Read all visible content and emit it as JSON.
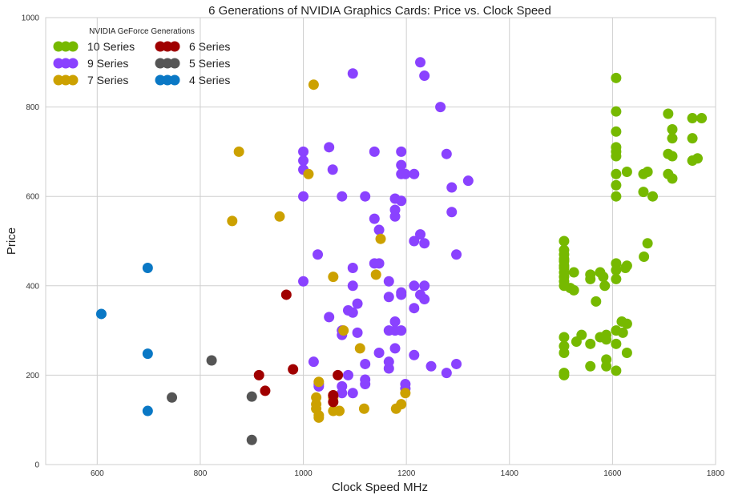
{
  "chart_data": {
    "type": "scatter",
    "title": "6 Generations of NVIDIA Graphics Cards: Price vs. Clock Speed",
    "xlabel": "Clock Speed MHz",
    "ylabel": "Price",
    "xlim": [
      500,
      1800
    ],
    "ylim": [
      0,
      1000
    ],
    "xticks": [
      "600",
      "800",
      "1000",
      "1200",
      "1400",
      "1600",
      "1800"
    ],
    "yticks": [
      "0",
      "200",
      "400",
      "600",
      "800",
      "1000"
    ],
    "grid": true,
    "legend": {
      "title": "NVIDIA GeForce Generations",
      "placement": "top-left",
      "columns": 2
    },
    "series": [
      {
        "name": "10 Series",
        "color": "#76b900",
        "points": [
          [
            1506,
            500
          ],
          [
            1506,
            480
          ],
          [
            1506,
            470
          ],
          [
            1506,
            460
          ],
          [
            1506,
            455
          ],
          [
            1506,
            445
          ],
          [
            1506,
            440
          ],
          [
            1506,
            430
          ],
          [
            1506,
            420
          ],
          [
            1506,
            410
          ],
          [
            1506,
            400
          ],
          [
            1506,
            285
          ],
          [
            1506,
            265
          ],
          [
            1506,
            250
          ],
          [
            1506,
            205
          ],
          [
            1506,
            200
          ],
          [
            1518,
            395
          ],
          [
            1525,
            390
          ],
          [
            1525,
            430
          ],
          [
            1530,
            275
          ],
          [
            1540,
            290
          ],
          [
            1557,
            425
          ],
          [
            1557,
            415
          ],
          [
            1557,
            270
          ],
          [
            1557,
            220
          ],
          [
            1568,
            365
          ],
          [
            1576,
            430
          ],
          [
            1576,
            285
          ],
          [
            1582,
            420
          ],
          [
            1585,
            400
          ],
          [
            1588,
            290
          ],
          [
            1588,
            280
          ],
          [
            1588,
            235
          ],
          [
            1588,
            220
          ],
          [
            1607,
            865
          ],
          [
            1607,
            790
          ],
          [
            1607,
            745
          ],
          [
            1607,
            710
          ],
          [
            1607,
            700
          ],
          [
            1607,
            690
          ],
          [
            1607,
            650
          ],
          [
            1607,
            625
          ],
          [
            1607,
            600
          ],
          [
            1607,
            450
          ],
          [
            1607,
            435
          ],
          [
            1607,
            415
          ],
          [
            1607,
            300
          ],
          [
            1607,
            270
          ],
          [
            1607,
            210
          ],
          [
            1618,
            320
          ],
          [
            1620,
            295
          ],
          [
            1625,
            440
          ],
          [
            1628,
            445
          ],
          [
            1628,
            315
          ],
          [
            1628,
            655
          ],
          [
            1628,
            250
          ],
          [
            1660,
            650
          ],
          [
            1660,
            610
          ],
          [
            1661,
            465
          ],
          [
            1668,
            495
          ],
          [
            1668,
            655
          ],
          [
            1678,
            600
          ],
          [
            1708,
            785
          ],
          [
            1708,
            695
          ],
          [
            1708,
            650
          ],
          [
            1716,
            750
          ],
          [
            1716,
            730
          ],
          [
            1716,
            690
          ],
          [
            1716,
            640
          ],
          [
            1755,
            775
          ],
          [
            1755,
            730
          ],
          [
            1755,
            680
          ],
          [
            1765,
            685
          ],
          [
            1773,
            775
          ]
        ]
      },
      {
        "name": "9 Series",
        "color": "#8a42ff",
        "points": [
          [
            1000,
            700
          ],
          [
            1000,
            680
          ],
          [
            1000,
            660
          ],
          [
            1000,
            600
          ],
          [
            1000,
            410
          ],
          [
            1020,
            230
          ],
          [
            1028,
            470
          ],
          [
            1030,
            175
          ],
          [
            1030,
            180
          ],
          [
            1050,
            710
          ],
          [
            1050,
            330
          ],
          [
            1057,
            660
          ],
          [
            1075,
            600
          ],
          [
            1075,
            300
          ],
          [
            1075,
            290
          ],
          [
            1075,
            175
          ],
          [
            1075,
            160
          ],
          [
            1087,
            345
          ],
          [
            1087,
            200
          ],
          [
            1096,
            875
          ],
          [
            1096,
            400
          ],
          [
            1096,
            440
          ],
          [
            1096,
            340
          ],
          [
            1096,
            160
          ],
          [
            1105,
            360
          ],
          [
            1105,
            295
          ],
          [
            1120,
            600
          ],
          [
            1120,
            225
          ],
          [
            1120,
            190
          ],
          [
            1120,
            180
          ],
          [
            1138,
            700
          ],
          [
            1138,
            550
          ],
          [
            1138,
            450
          ],
          [
            1147,
            525
          ],
          [
            1147,
            450
          ],
          [
            1147,
            250
          ],
          [
            1166,
            410
          ],
          [
            1166,
            375
          ],
          [
            1166,
            300
          ],
          [
            1166,
            230
          ],
          [
            1166,
            215
          ],
          [
            1178,
            595
          ],
          [
            1178,
            570
          ],
          [
            1178,
            555
          ],
          [
            1178,
            320
          ],
          [
            1178,
            300
          ],
          [
            1178,
            260
          ],
          [
            1190,
            700
          ],
          [
            1190,
            670
          ],
          [
            1190,
            650
          ],
          [
            1190,
            590
          ],
          [
            1190,
            385
          ],
          [
            1190,
            380
          ],
          [
            1190,
            300
          ],
          [
            1198,
            650
          ],
          [
            1198,
            180
          ],
          [
            1198,
            170
          ],
          [
            1215,
            650
          ],
          [
            1215,
            500
          ],
          [
            1215,
            400
          ],
          [
            1215,
            350
          ],
          [
            1215,
            245
          ],
          [
            1227,
            900
          ],
          [
            1227,
            515
          ],
          [
            1227,
            380
          ],
          [
            1235,
            870
          ],
          [
            1235,
            495
          ],
          [
            1235,
            400
          ],
          [
            1235,
            370
          ],
          [
            1248,
            220
          ],
          [
            1266,
            800
          ],
          [
            1278,
            695
          ],
          [
            1278,
            205
          ],
          [
            1288,
            620
          ],
          [
            1288,
            565
          ],
          [
            1297,
            470
          ],
          [
            1297,
            225
          ],
          [
            1320,
            635
          ]
        ]
      },
      {
        "name": "7 Series",
        "color": "#cca100",
        "points": [
          [
            862,
            545
          ],
          [
            875,
            700
          ],
          [
            954,
            555
          ],
          [
            1010,
            650
          ],
          [
            1020,
            850
          ],
          [
            1025,
            150
          ],
          [
            1025,
            135
          ],
          [
            1025,
            125
          ],
          [
            1030,
            185
          ],
          [
            1030,
            110
          ],
          [
            1030,
            105
          ],
          [
            1058,
            420
          ],
          [
            1058,
            155
          ],
          [
            1058,
            150
          ],
          [
            1058,
            120
          ],
          [
            1070,
            120
          ],
          [
            1078,
            300
          ],
          [
            1110,
            260
          ],
          [
            1118,
            125
          ],
          [
            1141,
            425
          ],
          [
            1150,
            505
          ],
          [
            1180,
            125
          ],
          [
            1190,
            135
          ],
          [
            1198,
            160
          ]
        ]
      },
      {
        "name": "6 Series",
        "color": "#a00000",
        "points": [
          [
            914,
            200
          ],
          [
            926,
            165
          ],
          [
            967,
            380
          ],
          [
            980,
            213
          ],
          [
            1058,
            155
          ],
          [
            1058,
            140
          ],
          [
            1067,
            200
          ]
        ]
      },
      {
        "name": "5 Series",
        "color": "#555555",
        "points": [
          [
            745,
            150
          ],
          [
            822,
            233
          ],
          [
            900,
            152
          ],
          [
            900,
            55
          ]
        ]
      },
      {
        "name": "4 Series",
        "color": "#0a78c5",
        "points": [
          [
            608,
            337
          ],
          [
            698,
            440
          ],
          [
            698,
            248
          ],
          [
            698,
            120
          ]
        ]
      }
    ]
  }
}
